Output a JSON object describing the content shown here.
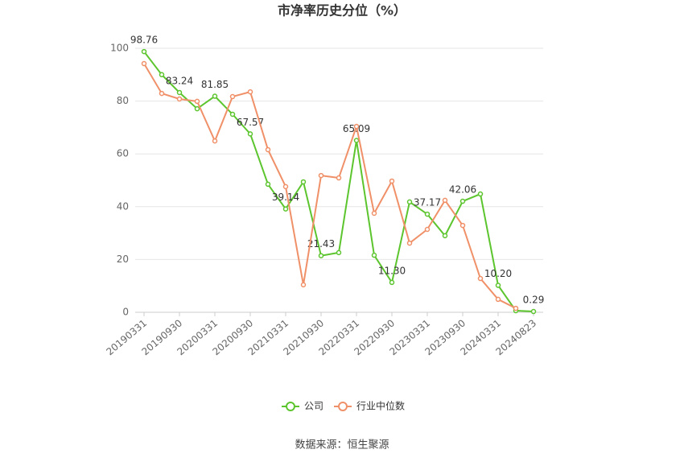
{
  "chart_data": {
    "type": "line",
    "title": "市净率历史分位（%）",
    "categories": [
      "20190331",
      null,
      "20190930",
      null,
      "20200331",
      null,
      "20200930",
      null,
      "20210331",
      null,
      "20210930",
      null,
      "20220331",
      null,
      "20220930",
      null,
      "20230331",
      null,
      "20230930",
      null,
      "20240331",
      null,
      "20240823"
    ],
    "series": [
      {
        "name": "公司",
        "color": "#5cc52e",
        "values": [
          98.76,
          90.0,
          83.24,
          77.1,
          81.85,
          75.0,
          67.57,
          48.5,
          39.14,
          49.4,
          21.43,
          22.6,
          65.09,
          21.6,
          11.3,
          41.8,
          37.17,
          29.0,
          42.06,
          44.8,
          10.2,
          0.6,
          0.29
        ],
        "value_labels": [
          "98.76",
          null,
          "83.24",
          null,
          "81.85",
          null,
          "67.57",
          null,
          "39.14",
          null,
          "21.43",
          null,
          "65.09",
          null,
          "11.30",
          null,
          "37.17",
          null,
          "42.06",
          null,
          "10.20",
          null,
          "0.29"
        ]
      },
      {
        "name": "行业中位数",
        "color": "#f09068",
        "values": [
          94.2,
          82.9,
          80.8,
          79.9,
          64.9,
          81.7,
          83.5,
          61.6,
          47.6,
          10.4,
          51.8,
          50.9,
          70.4,
          37.5,
          49.7,
          26.2,
          31.4,
          42.4,
          32.9,
          12.8,
          4.9,
          1.5,
          null
        ]
      }
    ],
    "ylim": [
      0,
      100
    ],
    "yticks": [
      0,
      20,
      40,
      60,
      80,
      100
    ],
    "grid": true,
    "source": "数据来源：恒生聚源"
  }
}
